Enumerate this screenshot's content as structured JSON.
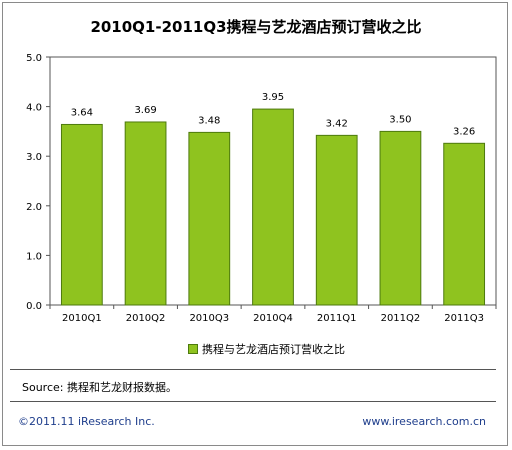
{
  "colors": {
    "bar": "#8fc31f",
    "bar_edge": "#4d7a0e",
    "footer_text": "#1f3e8c"
  },
  "chart_data": {
    "type": "bar",
    "title": "2010Q1-2011Q3携程与艺龙酒店预订营收之比",
    "categories": [
      "2010Q1",
      "2010Q2",
      "2010Q3",
      "2010Q4",
      "2011Q1",
      "2011Q2",
      "2011Q3"
    ],
    "series": [
      {
        "name": "携程与艺龙酒店预订营收之比",
        "values": [
          3.64,
          3.69,
          3.48,
          3.95,
          3.42,
          3.5,
          3.26
        ]
      }
    ],
    "data_labels": [
      "3.64",
      "3.69",
      "3.48",
      "3.95",
      "3.42",
      "3.50",
      "3.26"
    ],
    "yticks": [
      "0.0",
      "1.0",
      "2.0",
      "3.0",
      "4.0",
      "5.0"
    ],
    "ylim": [
      0,
      5
    ],
    "legend_position": "bottom",
    "grid": false
  },
  "source": "Source: 携程和艺龙财报数据。",
  "footer": {
    "copyright": "©2011.11 iResearch Inc.",
    "website": "www.iresearch.com.cn"
  }
}
